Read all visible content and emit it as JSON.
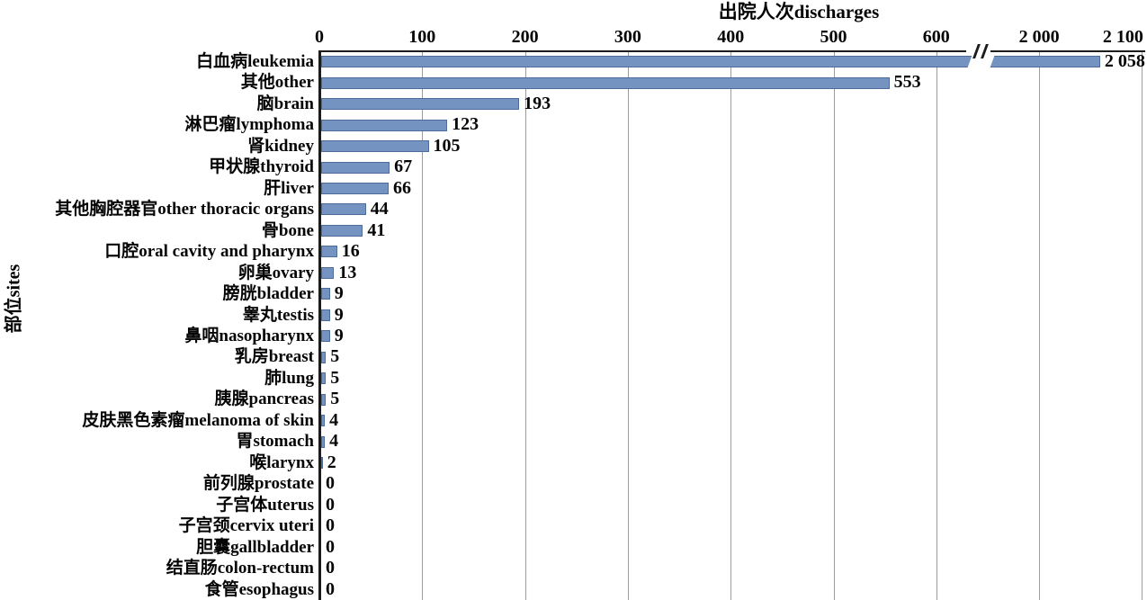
{
  "chart_data": {
    "type": "bar",
    "orientation": "horizontal",
    "xlabel": "出院人次discharges",
    "ylabel": "部位sites",
    "x_axis": {
      "position": "top",
      "tick_labels": [
        "0",
        "100",
        "200",
        "300",
        "400",
        "500",
        "600",
        "2 000",
        "2 100"
      ],
      "tick_values": [
        0,
        100,
        200,
        300,
        400,
        500,
        600,
        2000,
        2100
      ],
      "break": {
        "after": 600,
        "before": 2000,
        "symbol": "//"
      }
    },
    "grid": true,
    "legend": "none",
    "categories": [
      "白血病leukemia",
      "其他other",
      "脑brain",
      "淋巴瘤lymphoma",
      "肾kidney",
      "甲状腺thyroid",
      "肝liver",
      "其他胸腔器官other thoracic organs",
      "骨bone",
      "口腔oral cavity and pharynx",
      "卵巢ovary",
      "膀胱bladder",
      "睾丸testis",
      "鼻咽nasopharynx",
      "乳房breast",
      "肺lung",
      "胰腺pancreas",
      "皮肤黑色素瘤melanoma of skin",
      "胃stomach",
      "喉larynx",
      "前列腺prostate",
      "子宫体uterus",
      "子宫颈cervix uteri",
      "胆囊gallbladder",
      "结直肠colon-rectum",
      "食管esophagus"
    ],
    "values": [
      2058,
      553,
      193,
      123,
      105,
      67,
      66,
      44,
      41,
      16,
      13,
      9,
      9,
      9,
      5,
      5,
      5,
      4,
      4,
      2,
      0,
      0,
      0,
      0,
      0,
      0
    ],
    "value_labels": [
      "2 058",
      "553",
      "193",
      "123",
      "105",
      "67",
      "66",
      "44",
      "41",
      "16",
      "13",
      "9",
      "9",
      "9",
      "5",
      "5",
      "5",
      "4",
      "4",
      "2",
      "0",
      "0",
      "0",
      "0",
      "0",
      "0"
    ],
    "colors": {
      "bar_fill": "#7493C1",
      "bar_border": "#4C6D9C",
      "gridline": "#9D9D9D",
      "axis": "#1C1C1C",
      "text": "#000000",
      "background": "#FFFFFF"
    }
  }
}
